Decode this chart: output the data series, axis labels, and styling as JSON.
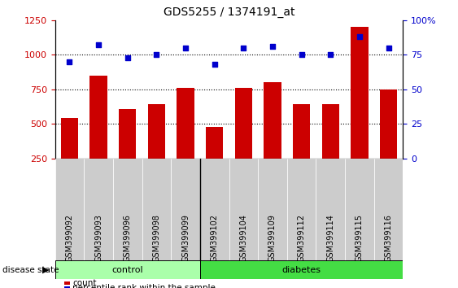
{
  "title": "GDS5255 / 1374191_at",
  "categories": [
    "GSM399092",
    "GSM399093",
    "GSM399096",
    "GSM399098",
    "GSM399099",
    "GSM399102",
    "GSM399104",
    "GSM399109",
    "GSM399112",
    "GSM399114",
    "GSM399115",
    "GSM399116"
  ],
  "counts": [
    540,
    850,
    610,
    645,
    760,
    475,
    760,
    800,
    640,
    645,
    1200,
    750
  ],
  "percentiles": [
    70,
    82,
    73,
    75,
    80,
    68,
    80,
    81,
    75,
    75,
    88,
    80
  ],
  "bar_color": "#cc0000",
  "dot_color": "#0000cc",
  "left_ylim": [
    250,
    1250
  ],
  "right_ylim": [
    0,
    100
  ],
  "left_yticks": [
    250,
    500,
    750,
    1000,
    1250
  ],
  "right_yticks": [
    0,
    25,
    50,
    75,
    100
  ],
  "right_yticklabels": [
    "0",
    "25",
    "50",
    "75",
    "100%"
  ],
  "n_control": 5,
  "n_diabetes": 7,
  "control_color": "#aaffaa",
  "diabetes_color": "#44dd44",
  "bg_color": "#cccccc",
  "dotted_lines": [
    500,
    750,
    1000
  ],
  "legend_count_label": "count",
  "legend_pct_label": "percentile rank within the sample",
  "disease_state_label": "disease state",
  "control_label": "control",
  "diabetes_label": "diabetes"
}
